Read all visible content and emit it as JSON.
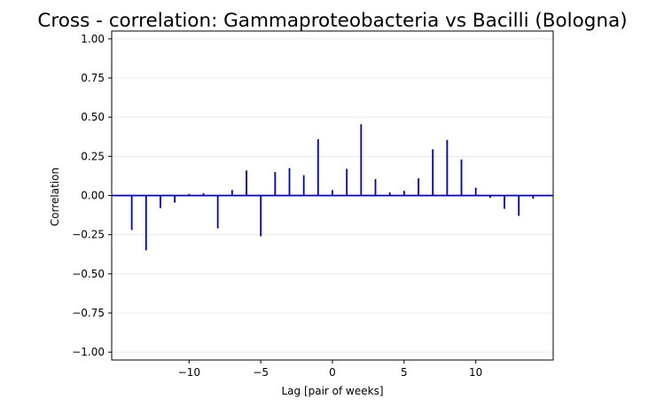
{
  "chart_data": {
    "type": "bar",
    "title": "Cross - correlation: Gammaproteobacteria vs Bacilli (Bologna)",
    "xlabel": "Lag [pair of weeks]",
    "ylabel": "Correlation",
    "xlim": [
      -15.4,
      15.4
    ],
    "ylim": [
      -1.05,
      1.05
    ],
    "xticks": [
      -10,
      -5,
      0,
      5,
      10
    ],
    "xtick_labels": [
      "−10",
      "−5",
      "0",
      "5",
      "10"
    ],
    "yticks": [
      -1.0,
      -0.75,
      -0.5,
      -0.25,
      0.0,
      0.25,
      0.5,
      0.75,
      1.0
    ],
    "ytick_labels": [
      "−1.00",
      "−0.75",
      "−0.50",
      "−0.25",
      "0.00",
      "0.25",
      "0.50",
      "0.75",
      "1.00"
    ],
    "grid": "y",
    "bar_color": "#0000cc",
    "zero_line_color": "#0000cc",
    "lags": [
      -14,
      -13,
      -12,
      -11,
      -10,
      -9,
      -8,
      -7,
      -6,
      -5,
      -4,
      -3,
      -2,
      -1,
      0,
      1,
      2,
      3,
      4,
      5,
      6,
      7,
      8,
      9,
      10,
      11,
      12,
      13,
      14
    ],
    "values": [
      -0.22,
      -0.35,
      -0.08,
      -0.045,
      0.01,
      0.015,
      -0.21,
      0.035,
      0.16,
      -0.26,
      0.15,
      0.175,
      0.13,
      0.36,
      0.035,
      0.17,
      0.455,
      0.105,
      0.02,
      0.03,
      0.11,
      0.295,
      0.355,
      0.23,
      0.05,
      -0.015,
      -0.085,
      -0.13,
      -0.02
    ]
  }
}
